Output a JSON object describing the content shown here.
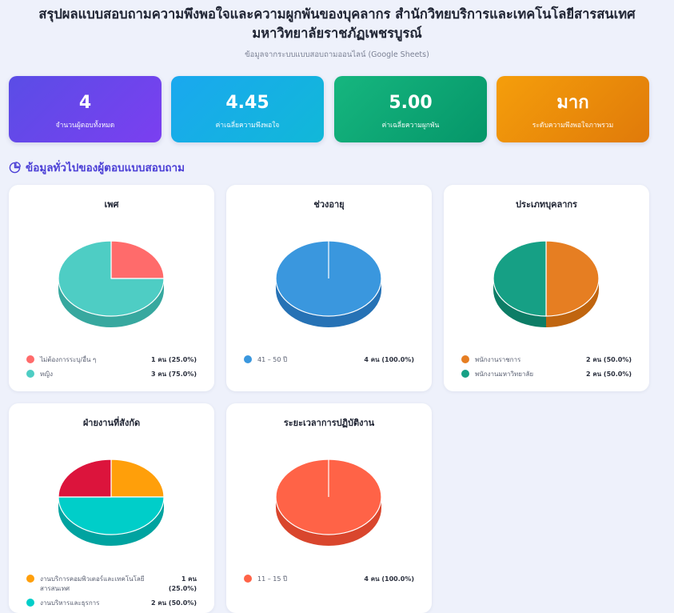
{
  "header": {
    "title": "สรุปผลแบบสอบถามความพึงพอใจและความผูกพันของบุคลากร สำนักวิทยบริการและเทคโนโลยีสารสนเทศ มหาวิทยาลัยราชภัฏเพชรบูรณ์",
    "subtitle": "ข้อมูลจากระบบแบบสอบถามออนไลน์ (Google Sheets)"
  },
  "stats": [
    {
      "value": "4",
      "label": "จำนวนผู้ตอบทั้งหมด",
      "color": "#6246ea"
    },
    {
      "value": "4.45",
      "label": "ค่าเฉลี่ยความพึงพอใจ",
      "color": "#17b0e5"
    },
    {
      "value": "5.00",
      "label": "ค่าเฉลี่ยความผูกพัน",
      "color": "#10a874"
    },
    {
      "value": "มาก",
      "label": "ระดับความพึงพอใจภาพรวม",
      "color": "#ef8f0b"
    }
  ],
  "section": {
    "title": "ข้อมูลทั่วไปของผู้ตอบแบบสอบถาม",
    "icon": "pie-chart-icon"
  },
  "chart_data": [
    {
      "type": "pie",
      "title": "เพศ",
      "slices": [
        {
          "label": "ไม่ต้องการระบุ/อื่น ๆ",
          "value": 1,
          "percent": 25.0,
          "display": "1 คน (25.0%)",
          "color": "#ff6b6b",
          "side": "#d45353"
        },
        {
          "label": "หญิง",
          "value": 3,
          "percent": 75.0,
          "display": "3 คน (75.0%)",
          "color": "#4ecdc4",
          "side": "#37a89f"
        }
      ]
    },
    {
      "type": "pie",
      "title": "ช่วงอายุ",
      "slices": [
        {
          "label": "41 – 50 ปี",
          "value": 4,
          "percent": 100.0,
          "display": "4 คน (100.0%)",
          "color": "#3a97de",
          "side": "#2672b5"
        }
      ]
    },
    {
      "type": "pie",
      "title": "ประเภทบุคลากร",
      "slices": [
        {
          "label": "พนักงานราชการ",
          "value": 2,
          "percent": 50.0,
          "display": "2 คน (50.0%)",
          "color": "#e67e22",
          "side": "#c0650f"
        },
        {
          "label": "พนักงานมหาวิทยาลัย",
          "value": 2,
          "percent": 50.0,
          "display": "2 คน (50.0%)",
          "color": "#16a085",
          "side": "#0d7d66"
        }
      ]
    },
    {
      "type": "pie",
      "title": "ฝ่ายงานที่สังกัด",
      "slices": [
        {
          "label": "งานบริการคอมพิวเตอร์และเทคโนโลยีสารสนเทศ",
          "value": 1,
          "percent": 25.0,
          "display": "1 คน (25.0%)",
          "color": "#ff9f0a",
          "side": "#cc7e06"
        },
        {
          "label": "งานบริหารและธุรการ",
          "value": 2,
          "percent": 50.0,
          "display": "2 คน (50.0%)",
          "color": "#00cec9",
          "side": "#00a3a0"
        },
        {
          "label": "",
          "value": 1,
          "percent": 25.0,
          "display": "",
          "color": "#dc143c",
          "side": "#a80f2e"
        }
      ]
    },
    {
      "type": "pie",
      "title": "ระยะเวลาการปฏิบัติงาน",
      "slices": [
        {
          "label": "11 – 15 ปี",
          "value": 4,
          "percent": 100.0,
          "display": "4 คน (100.0%)",
          "color": "#ff6347",
          "side": "#d9462d"
        }
      ]
    }
  ]
}
